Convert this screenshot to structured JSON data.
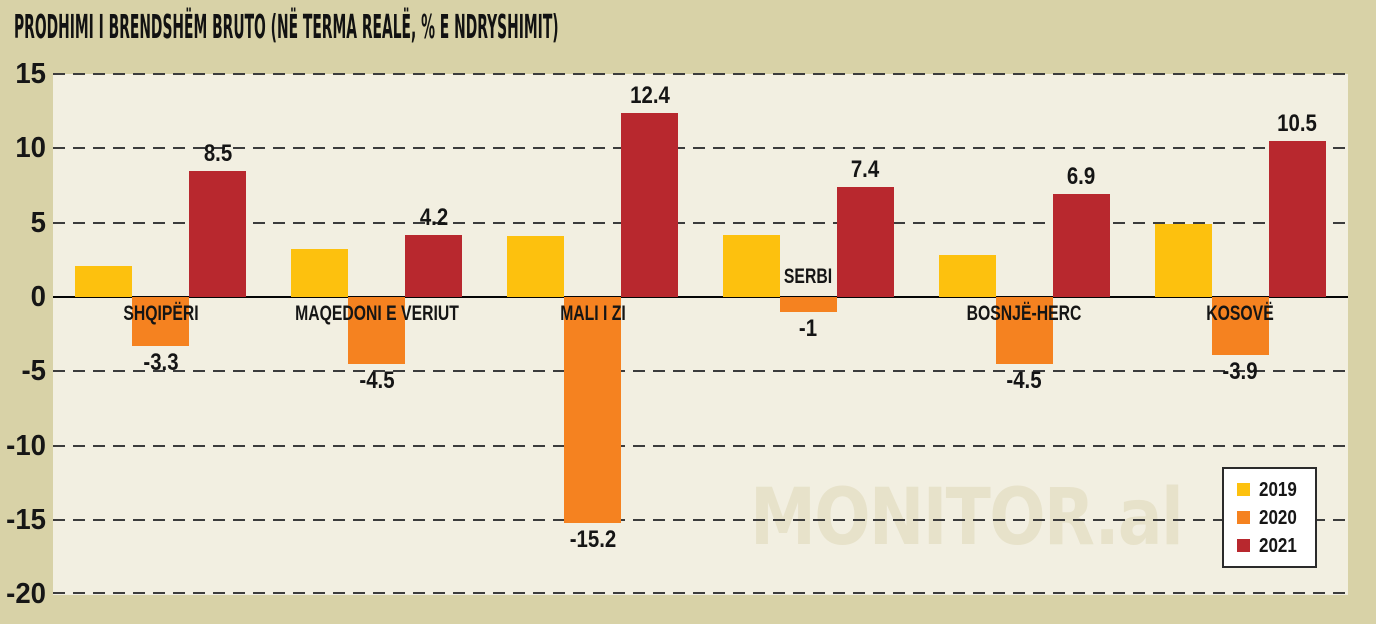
{
  "title": "PRODHIMI I BRENDSHËM BRUTO (NË TERMA REALË, % E NDRYSHIMIT)",
  "watermark": "MONITOR.al",
  "colors": {
    "background": "#d8d2a7",
    "plot_background": "#f2efe1",
    "gridline": "#3c3c3c",
    "zero_line": "#050505",
    "text": "#161616",
    "watermark": "#e7e2ca",
    "legend_background": "#ffffff",
    "legend_border": "#2b2b2b",
    "series_2019": "#fdc10e",
    "series_2020": "#f58220",
    "series_2021": "#b8282e"
  },
  "chart_data": {
    "type": "bar",
    "title": "PRODHIMI I BRENDSHËM BRUTO (NË TERMA REALË, % E NDRYSHIMIT)",
    "categories": [
      "SHQIPËRI",
      "MAQEDONI E VERIUT",
      "MALI I ZI",
      "SERBI",
      "BOSNJË-HERC",
      "KOSOVË"
    ],
    "series": [
      {
        "name": "2019",
        "color": "#fdc10e",
        "values": [
          2.1,
          3.2,
          4.1,
          4.2,
          2.8,
          4.9
        ],
        "labels": null
      },
      {
        "name": "2020",
        "color": "#f58220",
        "values": [
          -3.3,
          -4.5,
          -15.2,
          -1,
          -4.5,
          -3.9
        ],
        "labels": [
          "-3.3",
          "-4.5",
          "-15.2",
          "-1",
          "-4.5",
          "-3.9"
        ]
      },
      {
        "name": "2021",
        "color": "#b8282e",
        "values": [
          8.5,
          4.2,
          12.4,
          7.4,
          6.9,
          10.5
        ],
        "labels": [
          "8.5",
          "4.2",
          "12.4",
          "7.4",
          "6.9",
          "10.5"
        ]
      }
    ],
    "category_label_position": [
      "below",
      "below",
      "below",
      "above",
      "below",
      "below"
    ],
    "y_ticks": [
      15,
      10,
      5,
      0,
      -5,
      -10,
      -15,
      -20
    ],
    "ylim": [
      -20,
      15
    ],
    "xlabel": "",
    "ylabel": "",
    "gridlines": "dashed horizontal, solid line at zero",
    "legend": {
      "position": "bottom-right",
      "entries": [
        "2019",
        "2020",
        "2021"
      ]
    }
  }
}
